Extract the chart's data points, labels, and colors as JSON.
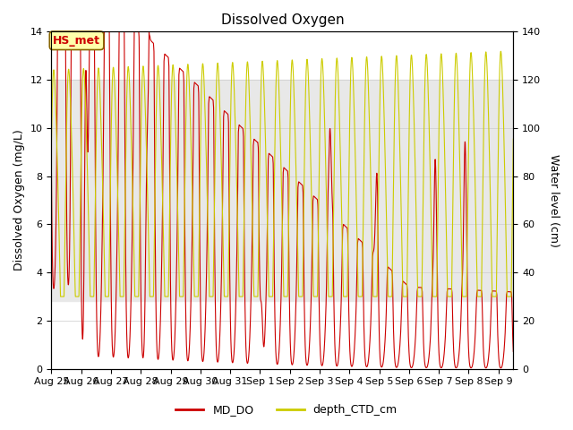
{
  "title": "Dissolved Oxygen",
  "ylabel_left": "Dissolved Oxygen (mg/L)",
  "ylabel_right": "Water level (cm)",
  "ylim_left": [
    0,
    14
  ],
  "ylim_right": [
    0,
    140
  ],
  "xlim_start_day": 0,
  "xlim_end_day": 15.5,
  "shade_ymin": 2.8,
  "shade_ymax": 12.0,
  "annotation_text": "HS_met",
  "xtick_labels": [
    "Aug 25",
    "Aug 26",
    "Aug 27",
    "Aug 28",
    "Aug 29",
    "Aug 30",
    "Aug 31",
    "Sep 1",
    "Sep 2",
    "Sep 3",
    "Sep 4",
    "Sep 5",
    "Sep 6",
    "Sep 7",
    "Sep 8",
    "Sep 9"
  ],
  "xtick_positions": [
    0,
    1,
    2,
    3,
    4,
    5,
    6,
    7,
    8,
    9,
    10,
    11,
    12,
    13,
    14,
    15
  ],
  "color_do": "#cc0000",
  "color_depth": "#cccc00",
  "legend_labels": [
    "MD_DO",
    "depth_CTD_cm"
  ],
  "background_color": "#ffffff",
  "grid_color": "#cccccc",
  "shade_color": "#e8e8e8"
}
